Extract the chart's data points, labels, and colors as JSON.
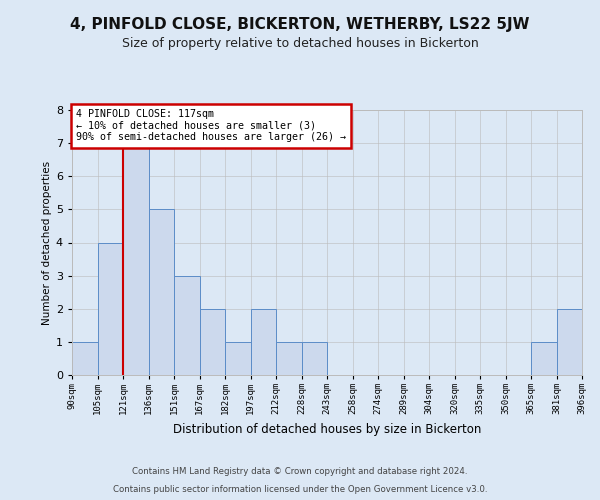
{
  "title": "4, PINFOLD CLOSE, BICKERTON, WETHERBY, LS22 5JW",
  "subtitle": "Size of property relative to detached houses in Bickerton",
  "xlabel": "Distribution of detached houses by size in Bickerton",
  "ylabel": "Number of detached properties",
  "footnote1": "Contains HM Land Registry data © Crown copyright and database right 2024.",
  "footnote2": "Contains public sector information licensed under the Open Government Licence v3.0.",
  "bin_labels": [
    "90sqm",
    "105sqm",
    "121sqm",
    "136sqm",
    "151sqm",
    "167sqm",
    "182sqm",
    "197sqm",
    "212sqm",
    "228sqm",
    "243sqm",
    "258sqm",
    "274sqm",
    "289sqm",
    "304sqm",
    "320sqm",
    "335sqm",
    "350sqm",
    "365sqm",
    "381sqm",
    "396sqm"
  ],
  "bar_heights": [
    1,
    4,
    7,
    5,
    3,
    2,
    1,
    2,
    1,
    1,
    0,
    0,
    0,
    0,
    0,
    0,
    0,
    0,
    1,
    2
  ],
  "bar_color": "#ccd9ed",
  "bar_edge_color": "#5b8cc8",
  "red_line_index": 2,
  "annotation_line1": "4 PINFOLD CLOSE: 117sqm",
  "annotation_line2": "← 10% of detached houses are smaller (3)",
  "annotation_line3": "90% of semi-detached houses are larger (26) →",
  "annotation_box_color": "#ffffff",
  "annotation_box_edge_color": "#cc0000",
  "red_line_color": "#cc0000",
  "ylim": [
    0,
    8
  ],
  "yticks": [
    0,
    1,
    2,
    3,
    4,
    5,
    6,
    7,
    8
  ],
  "grid_color": "#bbbbbb",
  "bg_color": "#dce8f5",
  "title_fontsize": 11,
  "subtitle_fontsize": 9
}
